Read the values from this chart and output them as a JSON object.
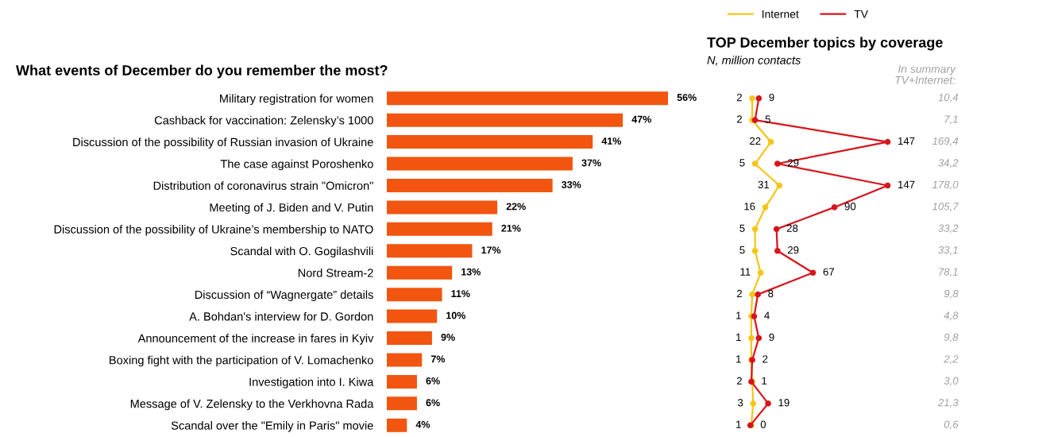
{
  "chart_data": [
    {
      "type": "bar",
      "orientation": "horizontal",
      "title": "What events of December do you remember the most?",
      "categories": [
        "Military registration for women",
        "Cashback for vaccination: Zelensky’s 1000",
        "Discussion of the possibility of Russian invasion of Ukraine",
        "The case against Poroshenko",
        "Distribution of coronavirus strain \"Omicron\"",
        "Meeting of J. Biden and V. Putin",
        "Discussion of the possibility of Ukraine’s membership to NATO",
        "Scandal with O. Gogilashvili",
        "Nord Stream-2",
        "Discussion of “Wagnergate” details",
        "A. Bohdan's interview for D. Gordon",
        "Announcement of the increase in fares in Kyiv",
        "Boxing fight with the participation of V. Lomachenko",
        "Investigation into I. Kiwa",
        "Message of V. Zelensky to the Verkhovna Rada",
        "Scandal over the \"Emily in Paris\" movie"
      ],
      "values": [
        56,
        47,
        41,
        37,
        33,
        22,
        21,
        17,
        13,
        11,
        10,
        9,
        7,
        6,
        6,
        4
      ],
      "value_labels": [
        "56%",
        "47%",
        "41%",
        "37%",
        "33%",
        "22%",
        "21%",
        "17%",
        "13%",
        "11%",
        "10%",
        "9%",
        "7%",
        "6%",
        "6%",
        "4%"
      ],
      "color": "#f2550f",
      "tick_labels": "y"
    },
    {
      "type": "line",
      "orientation": "horizontal",
      "title": "TOP December topics by coverage",
      "subtitle": "N, million contacts",
      "categories": [
        null,
        null,
        null,
        null,
        null,
        null,
        null,
        null,
        null,
        null,
        null,
        null,
        null,
        null,
        null,
        null
      ],
      "series": [
        {
          "name": "Internet",
          "color": "#f5c518",
          "values": [
            2,
            2,
            22,
            5,
            31,
            16,
            5,
            5,
            11,
            2,
            1,
            1,
            1,
            2,
            3,
            1
          ]
        },
        {
          "name": "TV",
          "color": "#d9141c",
          "values": [
            9,
            5,
            147,
            29,
            147,
            90,
            28,
            29,
            67,
            8,
            4,
            9,
            2,
            1,
            19,
            0
          ]
        }
      ],
      "data_labels": true,
      "marker": "circle",
      "line_style": "solid",
      "legend": "top",
      "tick_labels": false
    },
    {
      "type": "other",
      "title": "In summary\nTV+Internet:",
      "annotations": [
        "10,4",
        "7,1",
        "169,4",
        "34,2",
        "178,0",
        "105,7",
        "33,2",
        "33,1",
        "78,1",
        "9,8",
        "4,8",
        "9,8",
        "2,2",
        "3,0",
        "21,3",
        "0,6"
      ]
    }
  ]
}
